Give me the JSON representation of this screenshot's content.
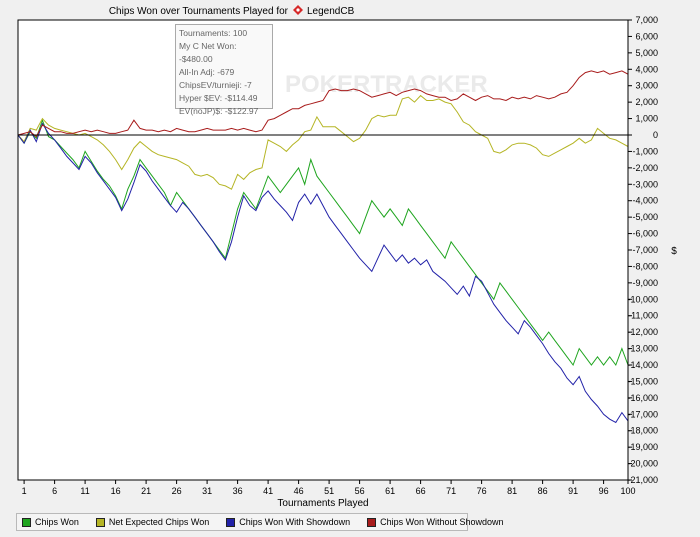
{
  "chart_data": {
    "type": "line",
    "title": "Chips Won over Tournaments Played for",
    "title_player": "LegendCB",
    "xlabel": "Tournaments Played",
    "ylabel": "$",
    "xlim": [
      1,
      100
    ],
    "ylim": [
      -21000,
      7000
    ],
    "x_ticks": [
      "1",
      "6",
      "11",
      "16",
      "21",
      "26",
      "31",
      "36",
      "41",
      "46",
      "51",
      "56",
      "61",
      "66",
      "71",
      "76",
      "81",
      "86",
      "91",
      "96",
      "100"
    ],
    "y_ticks": [
      "7,000",
      "6,000",
      "5,000",
      "4,000",
      "3,000",
      "2,000",
      "1,000",
      "0",
      "-1,000",
      "-2,000",
      "-3,000",
      "-4,000",
      "-5,000",
      "-6,000",
      "-7,000",
      "-8,000",
      "-9,000",
      "-10,000",
      "-11,000",
      "-12,000",
      "-13,000",
      "-14,000",
      "-15,000",
      "-16,000",
      "-17,000",
      "-18,000",
      "-19,000",
      "-20,000",
      "-21,000"
    ],
    "watermark": "POKERTRACKER",
    "legend_position": "bottom",
    "grid": false,
    "infobox": [
      "Tournaments: 100",
      "My C Net Won: -$480.00",
      "All-In Adj: -679",
      "ChipsEV/turnieji: -7",
      "Hyper $EV: -$114.49",
      "EV(noJP)$: -$122.97"
    ],
    "series": [
      {
        "name": "Chips Won",
        "color": "#1fa51f",
        "x": [
          0,
          1,
          2,
          3,
          4,
          5,
          6,
          7,
          8,
          9,
          10,
          11,
          12,
          13,
          14,
          15,
          16,
          17,
          18,
          19,
          20,
          21,
          22,
          23,
          24,
          25,
          26,
          27,
          28,
          29,
          30,
          31,
          32,
          33,
          34,
          35,
          36,
          37,
          38,
          39,
          40,
          41,
          42,
          43,
          44,
          45,
          46,
          47,
          48,
          49,
          50,
          51,
          52,
          53,
          54,
          55,
          56,
          57,
          58,
          59,
          60,
          61,
          62,
          63,
          64,
          65,
          66,
          67,
          68,
          69,
          70,
          71,
          72,
          73,
          74,
          75,
          76,
          77,
          78,
          79,
          80,
          81,
          82,
          83,
          84,
          85,
          86,
          87,
          88,
          89,
          90,
          91,
          92,
          93,
          94,
          95,
          96,
          97,
          98,
          99,
          100
        ],
        "y": [
          0,
          -500,
          200,
          -200,
          900,
          -100,
          -300,
          -700,
          -1100,
          -1500,
          -2000,
          -1000,
          -1600,
          -2200,
          -2700,
          -3100,
          -3700,
          -4500,
          -3300,
          -2500,
          -1500,
          -2000,
          -2500,
          -3000,
          -3500,
          -4300,
          -3500,
          -4000,
          -4500,
          -5000,
          -5500,
          -6000,
          -6500,
          -7000,
          -7500,
          -6000,
          -4500,
          -3500,
          -4000,
          -4500,
          -3500,
          -2500,
          -3000,
          -3500,
          -3000,
          -2500,
          -2000,
          -3000,
          -1500,
          -2500,
          -3000,
          -3500,
          -4000,
          -4500,
          -5000,
          -5500,
          -6000,
          -5000,
          -4000,
          -4500,
          -5000,
          -4500,
          -5000,
          -5500,
          -4500,
          -5000,
          -5500,
          -6000,
          -6500,
          -7000,
          -7500,
          -6500,
          -7000,
          -7500,
          -8000,
          -8500,
          -9000,
          -9500,
          -10000,
          -9000,
          -9500,
          -10000,
          -10500,
          -11000,
          -11500,
          -12000,
          -12500,
          -12000,
          -12500,
          -13000,
          -13500,
          -14000,
          -13000,
          -13500,
          -14000,
          -13500,
          -14000,
          -13500,
          -14000,
          -13000,
          -14000
        ],
        "values_note": ""
      },
      {
        "name": "Net Expected Chips Won",
        "color": "#b5b525",
        "x": [
          0,
          1,
          2,
          3,
          4,
          5,
          6,
          7,
          8,
          9,
          10,
          11,
          12,
          13,
          14,
          15,
          16,
          17,
          18,
          19,
          20,
          21,
          22,
          23,
          24,
          25,
          26,
          27,
          28,
          29,
          30,
          31,
          32,
          33,
          34,
          35,
          36,
          37,
          38,
          39,
          40,
          41,
          42,
          43,
          44,
          45,
          46,
          47,
          48,
          49,
          50,
          51,
          52,
          53,
          54,
          55,
          56,
          57,
          58,
          59,
          60,
          61,
          62,
          63,
          64,
          65,
          66,
          67,
          68,
          69,
          70,
          71,
          72,
          73,
          74,
          75,
          76,
          77,
          78,
          79,
          80,
          81,
          82,
          83,
          84,
          85,
          86,
          87,
          88,
          89,
          90,
          91,
          92,
          93,
          94,
          95,
          96,
          97,
          98,
          99,
          100
        ],
        "y": [
          0,
          -400,
          400,
          300,
          1000,
          600,
          400,
          300,
          200,
          100,
          0,
          100,
          -100,
          -300,
          -600,
          -1000,
          -1500,
          -2100,
          -1500,
          -800,
          -400,
          -700,
          -1000,
          -1200,
          -1300,
          -1400,
          -1500,
          -1700,
          -1900,
          -2400,
          -2500,
          -2400,
          -2600,
          -3000,
          -3100,
          -3300,
          -2400,
          -2700,
          -2300,
          -2100,
          -2000,
          -300,
          -500,
          -700,
          -1000,
          -600,
          -300,
          200,
          300,
          1100,
          500,
          500,
          500,
          200,
          -100,
          -400,
          -200,
          300,
          1000,
          1200,
          1100,
          1200,
          1200,
          2200,
          2300,
          2000,
          2400,
          2100,
          2100,
          2200,
          2000,
          1900,
          1400,
          800,
          600,
          200,
          0,
          -200,
          -1000,
          -1100,
          -900,
          -600,
          -500,
          -500,
          -600,
          -800,
          -1200,
          -1300,
          -1100,
          -900,
          -700,
          -500,
          -200,
          -500,
          -300,
          400,
          100,
          -200,
          -300,
          -500,
          -700
        ]
      },
      {
        "name": "Chips Won With Showdown",
        "color": "#2222a8",
        "x": [
          0,
          1,
          2,
          3,
          4,
          5,
          6,
          7,
          8,
          9,
          10,
          11,
          12,
          13,
          14,
          15,
          16,
          17,
          18,
          19,
          20,
          21,
          22,
          23,
          24,
          25,
          26,
          27,
          28,
          29,
          30,
          31,
          32,
          33,
          34,
          35,
          36,
          37,
          38,
          39,
          40,
          41,
          42,
          43,
          44,
          45,
          46,
          47,
          48,
          49,
          50,
          51,
          52,
          53,
          54,
          55,
          56,
          57,
          58,
          59,
          60,
          61,
          62,
          63,
          64,
          65,
          66,
          67,
          68,
          69,
          70,
          71,
          72,
          73,
          74,
          75,
          76,
          77,
          78,
          79,
          80,
          81,
          82,
          83,
          84,
          85,
          86,
          87,
          88,
          89,
          90,
          91,
          92,
          93,
          94,
          95,
          96,
          97,
          98,
          99,
          100
        ],
        "y": [
          0,
          -500,
          300,
          -400,
          700,
          100,
          -300,
          -800,
          -1300,
          -1700,
          -2100,
          -1300,
          -1700,
          -2300,
          -2800,
          -3300,
          -3800,
          -4600,
          -3900,
          -2900,
          -1800,
          -2200,
          -2800,
          -3300,
          -3800,
          -4300,
          -4700,
          -4100,
          -4500,
          -5000,
          -5500,
          -6000,
          -6500,
          -7100,
          -7600,
          -6500,
          -5000,
          -3700,
          -4300,
          -4600,
          -3800,
          -3400,
          -3900,
          -4300,
          -4700,
          -5200,
          -4100,
          -3600,
          -4200,
          -3600,
          -4300,
          -5000,
          -5500,
          -6000,
          -6500,
          -7000,
          -7500,
          -7900,
          -8300,
          -7500,
          -6700,
          -7200,
          -7700,
          -7300,
          -7800,
          -7500,
          -7900,
          -7600,
          -8300,
          -8600,
          -8900,
          -9300,
          -9700,
          -9200,
          -9800,
          -8600,
          -8900,
          -9600,
          -10300,
          -10800,
          -11300,
          -11700,
          -12100,
          -11300,
          -11700,
          -12200,
          -12700,
          -13300,
          -13800,
          -14200,
          -14800,
          -15200,
          -14700,
          -15600,
          -16100,
          -16500,
          -17000,
          -17300,
          -17500,
          -16900,
          -17400
        ]
      },
      {
        "name": "Chips Won Without Showdown",
        "color": "#a81c1c",
        "x": [
          0,
          1,
          2,
          3,
          4,
          5,
          6,
          7,
          8,
          9,
          10,
          11,
          12,
          13,
          14,
          15,
          16,
          17,
          18,
          19,
          20,
          21,
          22,
          23,
          24,
          25,
          26,
          27,
          28,
          29,
          30,
          31,
          32,
          33,
          34,
          35,
          36,
          37,
          38,
          39,
          40,
          41,
          42,
          43,
          44,
          45,
          46,
          47,
          48,
          49,
          50,
          51,
          52,
          53,
          54,
          55,
          56,
          57,
          58,
          59,
          60,
          61,
          62,
          63,
          64,
          65,
          66,
          67,
          68,
          69,
          70,
          71,
          72,
          73,
          74,
          75,
          76,
          77,
          78,
          79,
          80,
          81,
          82,
          83,
          84,
          85,
          86,
          87,
          88,
          89,
          90,
          91,
          92,
          93,
          94,
          95,
          96,
          97,
          98,
          99,
          100
        ],
        "y": [
          0,
          100,
          200,
          -100,
          600,
          400,
          200,
          200,
          100,
          100,
          200,
          300,
          200,
          300,
          200,
          100,
          100,
          200,
          300,
          900,
          400,
          300,
          300,
          200,
          300,
          200,
          400,
          300,
          200,
          200,
          300,
          400,
          300,
          300,
          300,
          400,
          300,
          400,
          300,
          200,
          300,
          900,
          1000,
          1200,
          1400,
          1600,
          1600,
          1800,
          1900,
          2000,
          2100,
          2700,
          2800,
          2700,
          2700,
          2800,
          2700,
          2500,
          2300,
          2400,
          2500,
          2600,
          2400,
          2600,
          2700,
          2800,
          2700,
          2500,
          2400,
          2300,
          2300,
          2100,
          2200,
          2500,
          2300,
          2100,
          2300,
          2400,
          2200,
          2200,
          2100,
          2300,
          2200,
          2300,
          2200,
          2400,
          2300,
          2200,
          2300,
          2500,
          2600,
          3000,
          3500,
          3800,
          3900,
          3800,
          3900,
          3700,
          3800,
          3900,
          3700
        ]
      }
    ]
  }
}
